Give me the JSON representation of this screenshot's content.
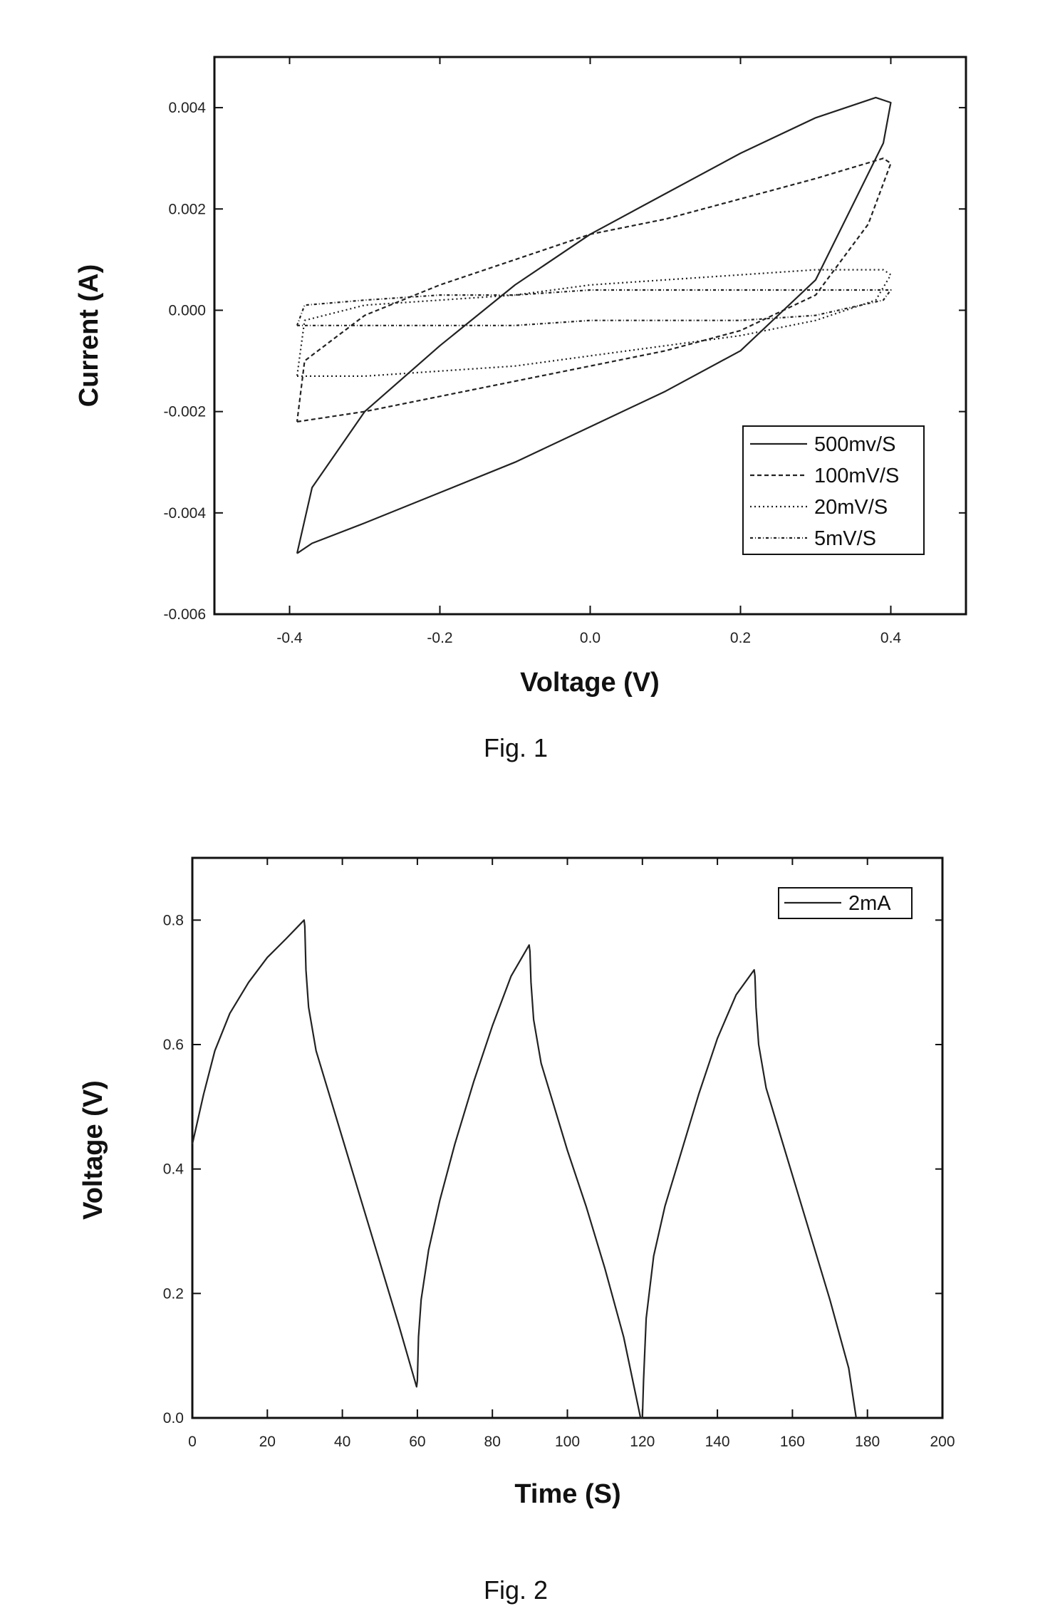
{
  "chart_data": [
    {
      "type": "line",
      "xlabel": "Voltage (V)",
      "ylabel": "Current (A)",
      "caption": "Fig. 1",
      "xlim": [
        -0.5,
        0.5
      ],
      "ylim": [
        -0.006,
        0.005
      ],
      "x_ticks": [
        "-0.4",
        "-0.2",
        "0.0",
        "0.2",
        "0.4"
      ],
      "x_tick_values": [
        -0.4,
        -0.2,
        0.0,
        0.2,
        0.4
      ],
      "y_ticks": [
        "-0.006",
        "-0.004",
        "-0.002",
        "0.000",
        "0.002",
        "0.004"
      ],
      "y_tick_values": [
        -0.006,
        -0.004,
        -0.002,
        0.0,
        0.002,
        0.004
      ],
      "grid": false,
      "legend_position": "bottom-right",
      "series": [
        {
          "name": "500mv/S",
          "dash": "",
          "x": [
            -0.39,
            -0.37,
            -0.3,
            -0.2,
            -0.1,
            0.0,
            0.1,
            0.2,
            0.3,
            0.39,
            0.4,
            0.38,
            0.3,
            0.2,
            0.1,
            0.0,
            -0.1,
            -0.2,
            -0.3,
            -0.37,
            -0.39
          ],
          "y": [
            -0.0048,
            -0.0046,
            -0.0042,
            -0.0036,
            -0.003,
            -0.0023,
            -0.0016,
            -0.0008,
            0.0006,
            0.0033,
            0.0041,
            0.0042,
            0.0038,
            0.0031,
            0.0023,
            0.0015,
            0.0005,
            -0.0007,
            -0.002,
            -0.0035,
            -0.0048
          ]
        },
        {
          "name": "100mV/S",
          "dash": "6,4",
          "x": [
            -0.39,
            -0.3,
            -0.2,
            -0.1,
            0.0,
            0.1,
            0.2,
            0.3,
            0.37,
            0.4,
            0.39,
            0.3,
            0.2,
            0.1,
            0.0,
            -0.1,
            -0.2,
            -0.3,
            -0.38,
            -0.39
          ],
          "y": [
            -0.0022,
            -0.002,
            -0.0017,
            -0.0014,
            -0.0011,
            -0.0008,
            -0.0004,
            0.0003,
            0.0017,
            0.0029,
            0.003,
            0.0026,
            0.0022,
            0.0018,
            0.0015,
            0.001,
            0.0005,
            -0.0001,
            -0.001,
            -0.0022
          ]
        },
        {
          "name": "20mV/S",
          "dash": "2,4",
          "x": [
            -0.39,
            -0.3,
            -0.2,
            -0.1,
            0.0,
            0.1,
            0.2,
            0.3,
            0.38,
            0.4,
            0.39,
            0.3,
            0.2,
            0.1,
            0.0,
            -0.1,
            -0.2,
            -0.3,
            -0.38,
            -0.39
          ],
          "y": [
            -0.0013,
            -0.0013,
            -0.0012,
            -0.0011,
            -0.0009,
            -0.0007,
            -0.0005,
            -0.0002,
            0.0002,
            0.0007,
            0.0008,
            0.0008,
            0.0007,
            0.0006,
            0.0005,
            0.0003,
            0.0002,
            0.0001,
            -0.0002,
            -0.0013
          ]
        },
        {
          "name": "5mV/S",
          "dash": "4,3,1,3",
          "x": [
            -0.39,
            -0.3,
            -0.2,
            -0.1,
            0.0,
            0.1,
            0.2,
            0.3,
            0.39,
            0.4,
            0.39,
            0.3,
            0.2,
            0.1,
            0.0,
            -0.1,
            -0.2,
            -0.3,
            -0.38,
            -0.39
          ],
          "y": [
            -0.0003,
            -0.0003,
            -0.0003,
            -0.0003,
            -0.0002,
            -0.0002,
            -0.0002,
            -0.0001,
            0.0002,
            0.0004,
            0.0004,
            0.0004,
            0.0004,
            0.0004,
            0.0004,
            0.0003,
            0.0003,
            0.0002,
            0.0001,
            -0.0003
          ]
        }
      ]
    },
    {
      "type": "line",
      "xlabel": "Time (S)",
      "ylabel": "Voltage (V)",
      "caption": "Fig. 2",
      "xlim": [
        0,
        200
      ],
      "ylim": [
        0,
        0.9
      ],
      "x_ticks": [
        "0",
        "20",
        "40",
        "60",
        "80",
        "100",
        "120",
        "140",
        "160",
        "180",
        "200"
      ],
      "x_tick_values": [
        0,
        20,
        40,
        60,
        80,
        100,
        120,
        140,
        160,
        180,
        200
      ],
      "y_ticks": [
        "0.0",
        "0.2",
        "0.4",
        "0.6",
        "0.8"
      ],
      "y_tick_values": [
        0.0,
        0.2,
        0.4,
        0.6,
        0.8
      ],
      "grid": false,
      "legend_position": "top-right",
      "series": [
        {
          "name": "2mA",
          "dash": "",
          "x": [
            0,
            3,
            6,
            10,
            15,
            20,
            25,
            29.8,
            30,
            30.3,
            31,
            33,
            36,
            40,
            45,
            50,
            55,
            59.8,
            60,
            60.3,
            61,
            63,
            66,
            70,
            75,
            80,
            85,
            89.8,
            90,
            90.3,
            91,
            93,
            96,
            100,
            105,
            110,
            115,
            119.5,
            120,
            120.3,
            121,
            123,
            126,
            130,
            135,
            140,
            145,
            149.8,
            150,
            150.3,
            151,
            153,
            156,
            160,
            165,
            170,
            175,
            177
          ],
          "y": [
            0.44,
            0.52,
            0.59,
            0.65,
            0.7,
            0.74,
            0.77,
            0.8,
            0.79,
            0.72,
            0.66,
            0.59,
            0.53,
            0.45,
            0.35,
            0.25,
            0.15,
            0.05,
            0.06,
            0.13,
            0.19,
            0.27,
            0.35,
            0.44,
            0.54,
            0.63,
            0.71,
            0.76,
            0.75,
            0.7,
            0.64,
            0.57,
            0.51,
            0.43,
            0.34,
            0.24,
            0.13,
            0.0,
            0.0,
            0.06,
            0.16,
            0.26,
            0.34,
            0.42,
            0.52,
            0.61,
            0.68,
            0.72,
            0.71,
            0.66,
            0.6,
            0.53,
            0.47,
            0.39,
            0.29,
            0.19,
            0.08,
            0.0
          ]
        }
      ]
    }
  ]
}
